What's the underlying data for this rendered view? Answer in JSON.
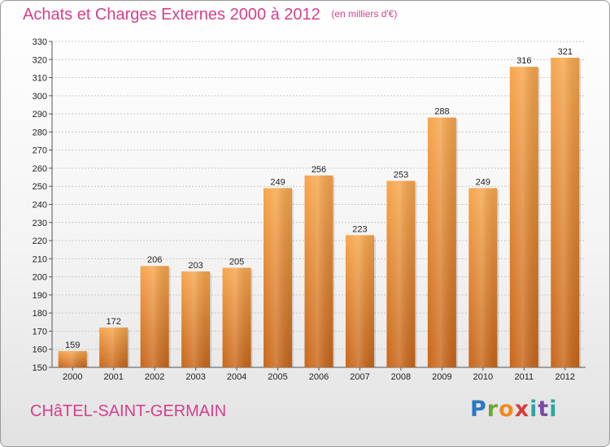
{
  "header": {
    "title": "Achats et Charges Externes 2000 à 2012",
    "unit": "(en milliers d'€)"
  },
  "footer": {
    "city": "CHâTEL-SAINT-GERMAIN",
    "logo": {
      "letters": [
        "P",
        "r",
        "o",
        "x",
        "i",
        "t",
        "i"
      ]
    }
  },
  "colors": {
    "title": "#d53f8a",
    "bar_top": "#f7a64c",
    "bar_bottom": "#c8661a",
    "grid": "#c8c8c8"
  },
  "chart_data": {
    "type": "bar",
    "title": "Achats et Charges Externes 2000 à 2012",
    "unit_label": "(en milliers d'€)",
    "categories": [
      "2000",
      "2001",
      "2002",
      "2003",
      "2004",
      "2005",
      "2006",
      "2007",
      "2008",
      "2009",
      "2010",
      "2011",
      "2012"
    ],
    "values": [
      159,
      172,
      206,
      203,
      205,
      249,
      256,
      223,
      253,
      288,
      249,
      316,
      321
    ],
    "ylim": [
      150,
      330
    ],
    "yticks": [
      150,
      160,
      170,
      180,
      190,
      200,
      210,
      220,
      230,
      240,
      250,
      260,
      270,
      280,
      290,
      300,
      310,
      320,
      330
    ],
    "grid": true,
    "data_labels": true,
    "legend": "none"
  }
}
